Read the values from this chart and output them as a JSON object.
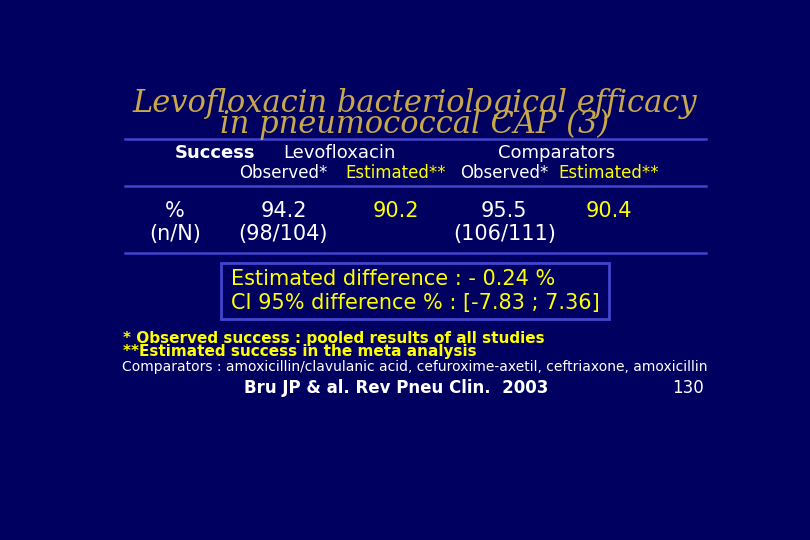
{
  "title_line1": "Levofloxacin bacteriological efficacy",
  "title_line2": "in pneumococcal CAP (3)",
  "title_color": "#C8A84B",
  "background_color": "#000060",
  "table_line_color": "#4444CC",
  "header1": "Levofloxacin",
  "header2": "Comparators",
  "col_headers_white": [
    "Observed*",
    "Observed*"
  ],
  "col_headers_yellow": [
    "Estimated**",
    "Estimated**"
  ],
  "row_label1": "Success",
  "row_label2": "%",
  "row_label3": "(n/N)",
  "data_observed_levo": "94.2",
  "data_estimated_levo": "90.2",
  "data_observed_comp": "95.5",
  "data_estimated_comp": "90.4",
  "data_n_levo": "(98/104)",
  "data_n_comp": "(106/111)",
  "estimated_diff_line1": "Estimated difference : - 0.24 %",
  "estimated_diff_line2": "CI 95% difference % : [-7.83 ; 7.36]",
  "footnote1": "* Observed success : pooled results of all studies",
  "footnote2": "**Estimated success in the meta analysis",
  "comparators_note": "Comparators : amoxicillin/clavulanic acid, cefuroxime-axetil, ceftriaxone, amoxicillin",
  "citation": "Bru JP & al. Rev Pneu Clin.  2003",
  "page_num": "130",
  "white_color": "#FFFFFF",
  "yellow_color": "#FFFF00",
  "box_border_color": "#4444CC",
  "title_fontsize": 22,
  "header_fontsize": 13,
  "subheader_fontsize": 12,
  "data_fontsize": 15,
  "footnote_fontsize": 11,
  "note_fontsize": 10,
  "cite_fontsize": 12
}
